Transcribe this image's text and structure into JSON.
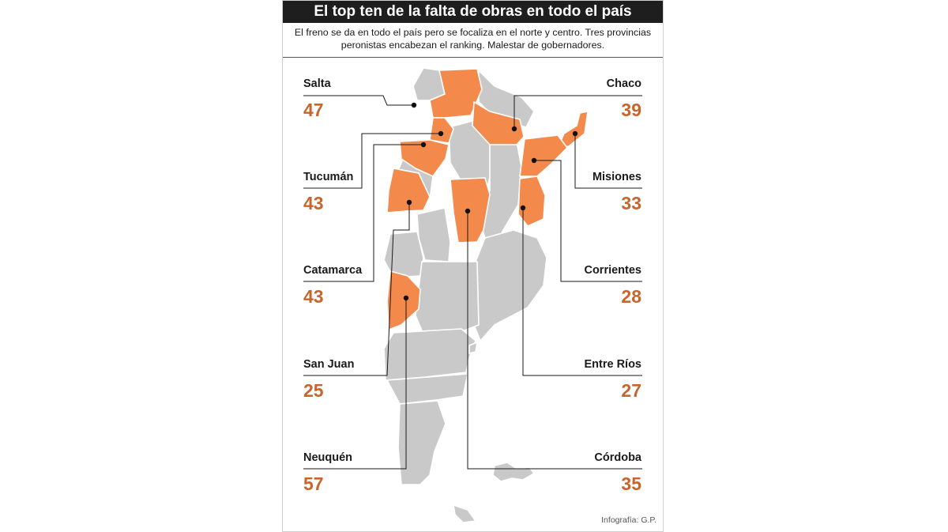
{
  "title": "El top ten de la falta de obras en todo el país",
  "subtitle": "El freno se da en todo el país pero se focaliza en el norte y centro. Tres provincias peronistas encabezan el ranking. Malestar de gobernadores.",
  "credit": "Infografía: G.P.",
  "colors": {
    "highlight": "#f38a4c",
    "province": "#c9c9c9",
    "value": "#c8652c",
    "title_bg": "#1e1e1e"
  },
  "provinces_left": [
    {
      "name": "Salta",
      "value": "47"
    },
    {
      "name": "Tucumán",
      "value": "43"
    },
    {
      "name": "Catamarca",
      "value": "43"
    },
    {
      "name": "San Juan",
      "value": "25"
    },
    {
      "name": "Neuquén",
      "value": "57"
    }
  ],
  "provinces_right": [
    {
      "name": "Chaco",
      "value": "39"
    },
    {
      "name": "Misiones",
      "value": "33"
    },
    {
      "name": "Corrientes",
      "value": "28"
    },
    {
      "name": "Entre Ríos",
      "value": "27"
    },
    {
      "name": "Córdoba",
      "value": "35"
    }
  ]
}
